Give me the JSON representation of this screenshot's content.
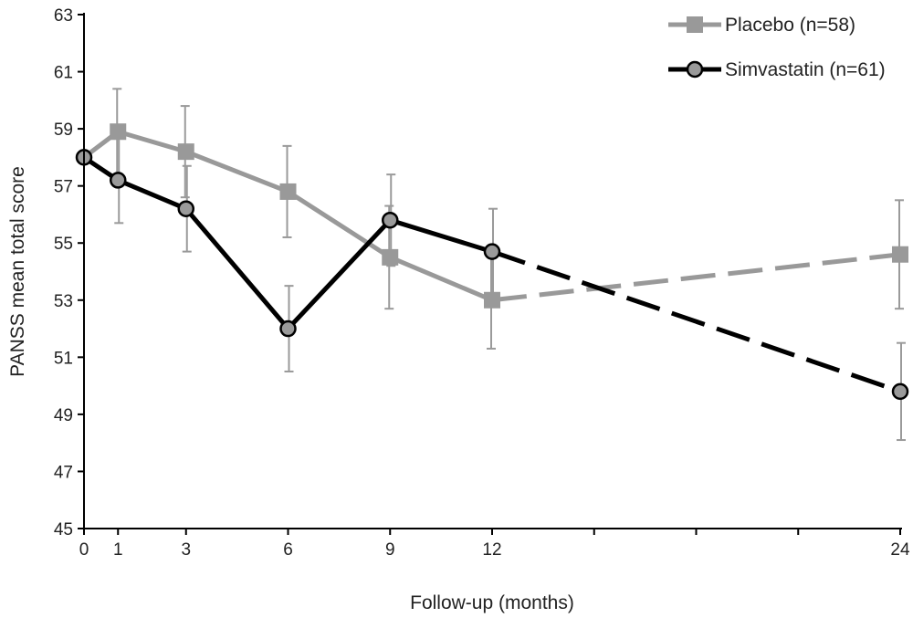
{
  "chart_data": {
    "type": "line",
    "title": "",
    "xlabel": "Follow-up (months)",
    "ylabel": "PANSS mean total score",
    "xlim": [
      0,
      24
    ],
    "ylim": [
      45,
      63
    ],
    "x_ticks": [
      0,
      1,
      3,
      6,
      9,
      12,
      24
    ],
    "x_minor_ticks": [
      15,
      18,
      21
    ],
    "y_ticks": [
      45,
      47,
      49,
      51,
      53,
      55,
      57,
      59,
      61,
      63
    ],
    "grid": false,
    "legend_position": "top-right",
    "series": [
      {
        "name": "Placebo (n=58)",
        "marker": "square",
        "color": "#999999",
        "x": [
          0,
          1,
          3,
          6,
          9,
          12,
          24
        ],
        "values": [
          58.0,
          58.9,
          58.2,
          56.8,
          54.5,
          53.0,
          54.6
        ],
        "error": [
          null,
          1.5,
          1.6,
          1.6,
          1.8,
          1.7,
          1.9
        ],
        "dashed_from_index": 5
      },
      {
        "name": "Simvastatin (n=61)",
        "marker": "circle",
        "color": "#000000",
        "x": [
          0,
          1,
          3,
          6,
          9,
          12,
          24
        ],
        "values": [
          58.0,
          57.2,
          56.2,
          52.0,
          55.8,
          54.7,
          49.8
        ],
        "error": [
          null,
          1.5,
          1.5,
          1.5,
          1.6,
          1.5,
          1.7
        ],
        "dashed_from_index": 5
      }
    ]
  }
}
